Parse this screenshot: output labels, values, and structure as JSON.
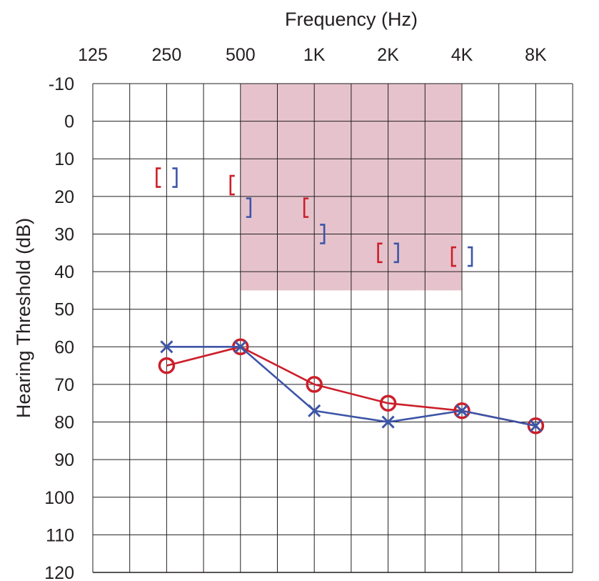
{
  "chart_data": {
    "type": "line",
    "title": "",
    "xlabel": "Frequency (Hz)",
    "ylabel": "Hearing Threshold (dB)",
    "x_ticks": [
      "125",
      "250",
      "500",
      "1K",
      "2K",
      "4K",
      "8K"
    ],
    "x_values_hz": [
      125,
      250,
      500,
      1000,
      2000,
      4000,
      8000
    ],
    "y_ticks": [
      -10,
      0,
      10,
      20,
      30,
      40,
      50,
      60,
      70,
      80,
      90,
      100,
      110,
      120
    ],
    "ylim": [
      -10,
      120
    ],
    "y_inverted": true,
    "x_scale": "log2 (octave) with half-octave gridlines",
    "grid": true,
    "shaded_region": {
      "x_from_hz": 500,
      "x_to_hz": 4000,
      "y_from_db": -10,
      "y_to_db": 45,
      "color": "#e6c3cc"
    },
    "series": [
      {
        "symbol": "O",
        "color": "#cc1f2a",
        "line": true,
        "points": [
          {
            "x": 250,
            "y": 65
          },
          {
            "x": 500,
            "y": 60
          },
          {
            "x": 1000,
            "y": 70
          },
          {
            "x": 2000,
            "y": 75
          },
          {
            "x": 4000,
            "y": 77
          },
          {
            "x": 8000,
            "y": 81
          }
        ]
      },
      {
        "symbol": "X",
        "color": "#3d55a7",
        "line": true,
        "points": [
          {
            "x": 250,
            "y": 60
          },
          {
            "x": 500,
            "y": 60
          },
          {
            "x": 1000,
            "y": 77
          },
          {
            "x": 2000,
            "y": 80
          },
          {
            "x": 4000,
            "y": 77
          },
          {
            "x": 8000,
            "y": 81
          }
        ]
      },
      {
        "symbol": "[",
        "color": "#cc1f2a",
        "line": false,
        "points": [
          {
            "x": 250,
            "y": 15
          },
          {
            "x": 500,
            "y": 17
          },
          {
            "x": 1000,
            "y": 23
          },
          {
            "x": 2000,
            "y": 35
          },
          {
            "x": 4000,
            "y": 36
          }
        ]
      },
      {
        "symbol": "]",
        "color": "#3d55a7",
        "line": false,
        "points": [
          {
            "x": 250,
            "y": 15
          },
          {
            "x": 500,
            "y": 23
          },
          {
            "x": 1000,
            "y": 30
          },
          {
            "x": 2000,
            "y": 35
          },
          {
            "x": 4000,
            "y": 36
          }
        ]
      }
    ]
  }
}
